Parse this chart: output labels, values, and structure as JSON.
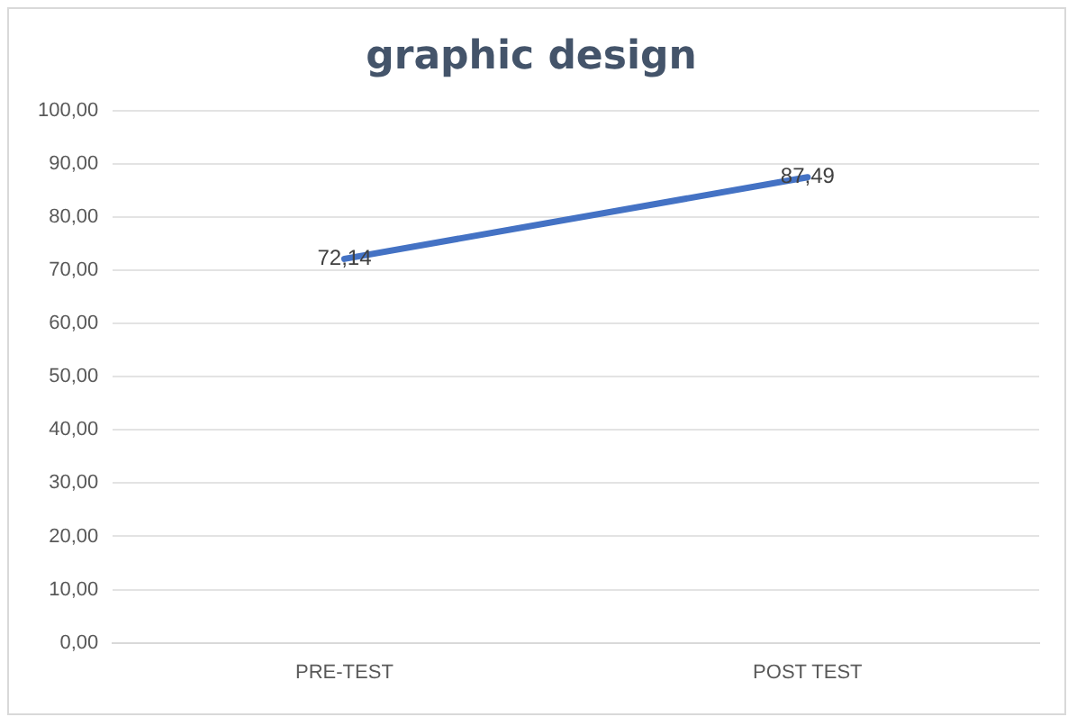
{
  "chart_data": {
    "type": "line",
    "title": "graphic design",
    "categories": [
      "PRE-TEST",
      "POST TEST"
    ],
    "series": [
      {
        "color": "#4472c4",
        "values": [
          72.14,
          87.49
        ],
        "value_labels": [
          "72,14",
          "87,49"
        ]
      }
    ],
    "ylim": [
      0,
      100
    ],
    "yticks": [
      {
        "value": 0,
        "label": "0,00"
      },
      {
        "value": 10,
        "label": "10,00"
      },
      {
        "value": 20,
        "label": "20,00"
      },
      {
        "value": 30,
        "label": "30,00"
      },
      {
        "value": 40,
        "label": "40,00"
      },
      {
        "value": 50,
        "label": "50,00"
      },
      {
        "value": 60,
        "label": "60,00"
      },
      {
        "value": 70,
        "label": "70,00"
      },
      {
        "value": 80,
        "label": "80,00"
      },
      {
        "value": 90,
        "label": "90,00"
      },
      {
        "value": 100,
        "label": "100,00"
      }
    ],
    "grid": "y",
    "legend": false,
    "marker": "none",
    "line_style": "solid"
  }
}
